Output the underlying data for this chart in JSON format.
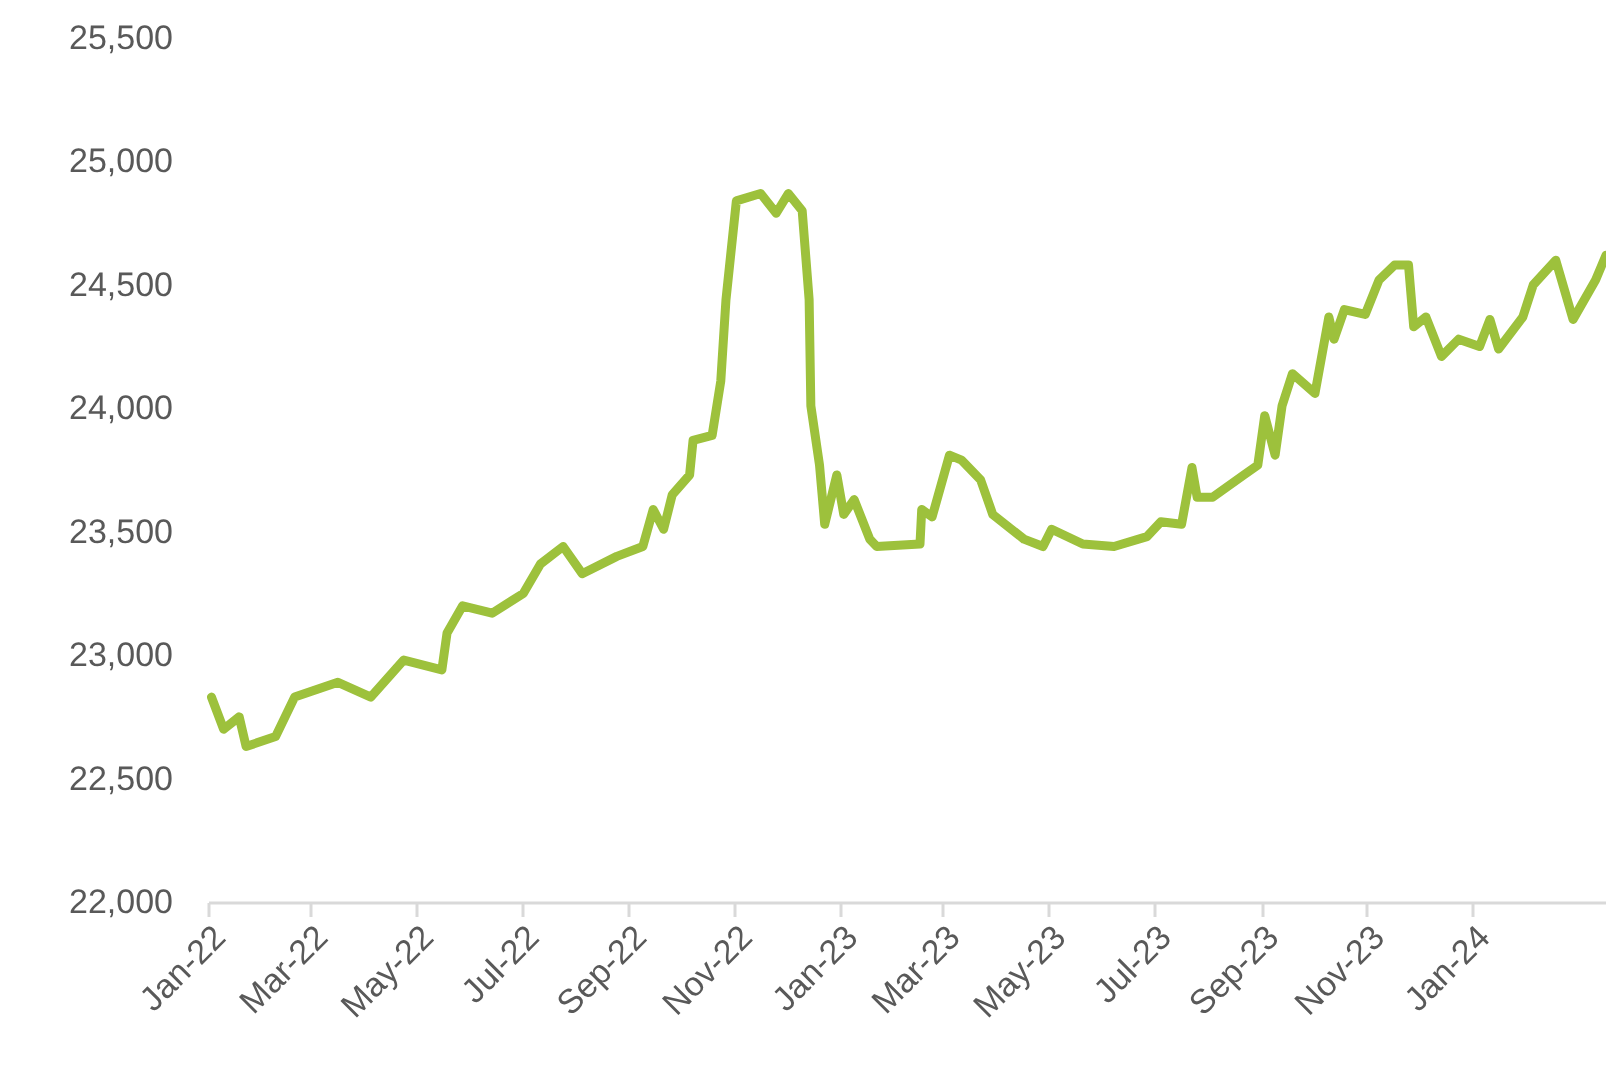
{
  "chart_data": {
    "type": "line",
    "x": [
      "2022-01-03",
      "2022-01-10",
      "2022-01-19",
      "2022-01-23",
      "2022-02-09",
      "2022-02-20",
      "2022-03-17",
      "2022-04-05",
      "2022-04-24",
      "2022-05-16",
      "2022-05-19",
      "2022-05-28",
      "2022-06-14",
      "2022-07-02",
      "2022-07-12",
      "2022-07-25",
      "2022-08-05",
      "2022-08-25",
      "2022-09-09",
      "2022-09-15",
      "2022-09-21",
      "2022-09-26",
      "2022-10-06",
      "2022-10-08",
      "2022-10-19",
      "2022-10-24",
      "2022-10-27",
      "2022-11-02",
      "2022-11-16",
      "2022-11-25",
      "2022-12-02",
      "2022-12-10",
      "2022-12-14",
      "2022-12-15",
      "2022-12-20",
      "2022-12-23",
      "2022-12-30",
      "2023-01-03",
      "2023-01-09",
      "2023-01-18",
      "2023-01-22",
      "2023-02-16",
      "2023-02-17",
      "2023-02-23",
      "2023-03-05",
      "2023-03-12",
      "2023-03-23",
      "2023-03-30",
      "2023-04-17",
      "2023-04-28",
      "2023-05-03",
      "2023-05-21",
      "2023-06-08",
      "2023-06-27",
      "2023-07-05",
      "2023-07-17",
      "2023-07-23",
      "2023-07-26",
      "2023-08-04",
      "2023-08-22",
      "2023-08-30",
      "2023-09-03",
      "2023-09-09",
      "2023-09-13",
      "2023-09-19",
      "2023-10-02",
      "2023-10-10",
      "2023-10-13",
      "2023-10-19",
      "2023-10-31",
      "2023-11-08",
      "2023-11-17",
      "2023-11-25",
      "2023-11-28",
      "2023-12-05",
      "2023-12-14",
      "2023-12-24",
      "2024-01-05",
      "2024-01-11",
      "2024-01-16",
      "2024-01-30",
      "2024-02-05",
      "2024-02-18",
      "2024-02-28",
      "2024-03-12",
      "2024-03-18"
    ],
    "series": [
      {
        "color": "#9dc13c",
        "values": [
          22830,
          22700,
          22750,
          22630,
          22670,
          22830,
          22890,
          22830,
          22980,
          22940,
          23090,
          23200,
          23170,
          23250,
          23370,
          23440,
          23330,
          23400,
          23440,
          23590,
          23510,
          23650,
          23730,
          23870,
          23890,
          24110,
          24440,
          24840,
          24870,
          24790,
          24870,
          24800,
          24440,
          24010,
          23770,
          23530,
          23730,
          23570,
          23630,
          23470,
          23440,
          23450,
          23590,
          23560,
          23810,
          23790,
          23710,
          23570,
          23470,
          23440,
          23510,
          23450,
          23440,
          23480,
          23540,
          23530,
          23760,
          23640,
          23640,
          23730,
          23770,
          23970,
          23810,
          24010,
          24140,
          24060,
          24370,
          24280,
          24400,
          24380,
          24520,
          24580,
          24580,
          24330,
          24370,
          24210,
          24280,
          24250,
          24360,
          24240,
          24370,
          24500,
          24600,
          24360,
          24520,
          24620
        ]
      }
    ],
    "xlim": [
      "2022-01-01",
      "2024-03-18"
    ],
    "xticks": [
      {
        "value": "2022-01-01",
        "label": "Jan-22"
      },
      {
        "value": "2022-03-01",
        "label": "Mar-22"
      },
      {
        "value": "2022-05-01",
        "label": "May-22"
      },
      {
        "value": "2022-07-01",
        "label": "Jul-22"
      },
      {
        "value": "2022-09-01",
        "label": "Sep-22"
      },
      {
        "value": "2022-11-01",
        "label": "Nov-22"
      },
      {
        "value": "2023-01-01",
        "label": "Jan-23"
      },
      {
        "value": "2023-03-01",
        "label": "Mar-23"
      },
      {
        "value": "2023-05-01",
        "label": "May-23"
      },
      {
        "value": "2023-07-01",
        "label": "Jul-23"
      },
      {
        "value": "2023-09-01",
        "label": "Sep-23"
      },
      {
        "value": "2023-11-01",
        "label": "Nov-23"
      },
      {
        "value": "2024-01-01",
        "label": "Jan-24"
      }
    ],
    "ylim": [
      22000,
      25500
    ],
    "yticks": [
      {
        "value": 22000,
        "label": "22,000"
      },
      {
        "value": 22500,
        "label": "22,500"
      },
      {
        "value": 23000,
        "label": "23,000"
      },
      {
        "value": 23500,
        "label": "23,500"
      },
      {
        "value": 24000,
        "label": "24,000"
      },
      {
        "value": 24500,
        "label": "24,500"
      },
      {
        "value": 25000,
        "label": "25,000"
      },
      {
        "value": 25500,
        "label": "25,500"
      }
    ],
    "grid": false,
    "marker": "none",
    "line_style": "solid"
  }
}
